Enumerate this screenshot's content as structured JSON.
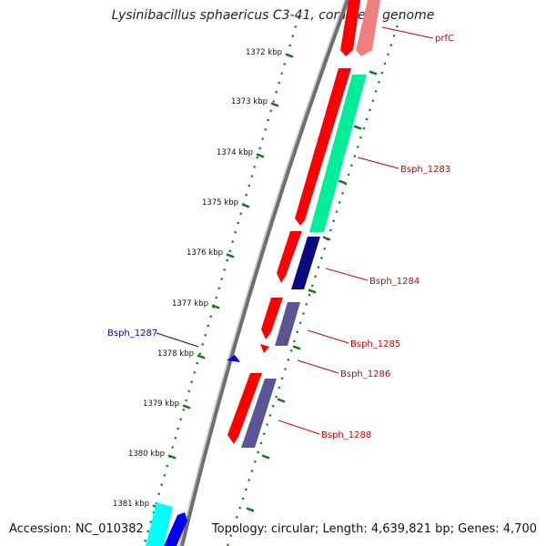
{
  "title": "Lysinibacillus sphaericus C3-41, complete genome",
  "footer": {
    "accession": "Accession: NC_010382",
    "topology": "Topology: circular; Length: 4,639,821 bp; Genes: 4,700"
  },
  "ticks": [
    "1372 kbp",
    "1373 kbp",
    "1374 kbp",
    "1375 kbp",
    "1376 kbp",
    "1377 kbp",
    "1378 kbp",
    "1379 kbp",
    "1380 kbp",
    "1381 kbp"
  ],
  "gene_labels": {
    "prfC": "prfC",
    "bsph1283": "Bsph_1283",
    "bsph1284": "Bsph_1284",
    "bsph1285": "Bsph_1285",
    "bsph1286": "Bsph_1286",
    "bsph1287": "Bsph_1287",
    "bsph1288": "Bsph_1288"
  },
  "colors": {
    "forward_cds": "#ff0000",
    "reverse_cds": "#1a1a80",
    "rna_like": "#00ff99",
    "slate": "#5b5596",
    "label_red": "#cc0000",
    "label_blue": "#0000cc",
    "backbone": "#888888",
    "tick_green": "#006600",
    "cyan": "#00ffff"
  }
}
